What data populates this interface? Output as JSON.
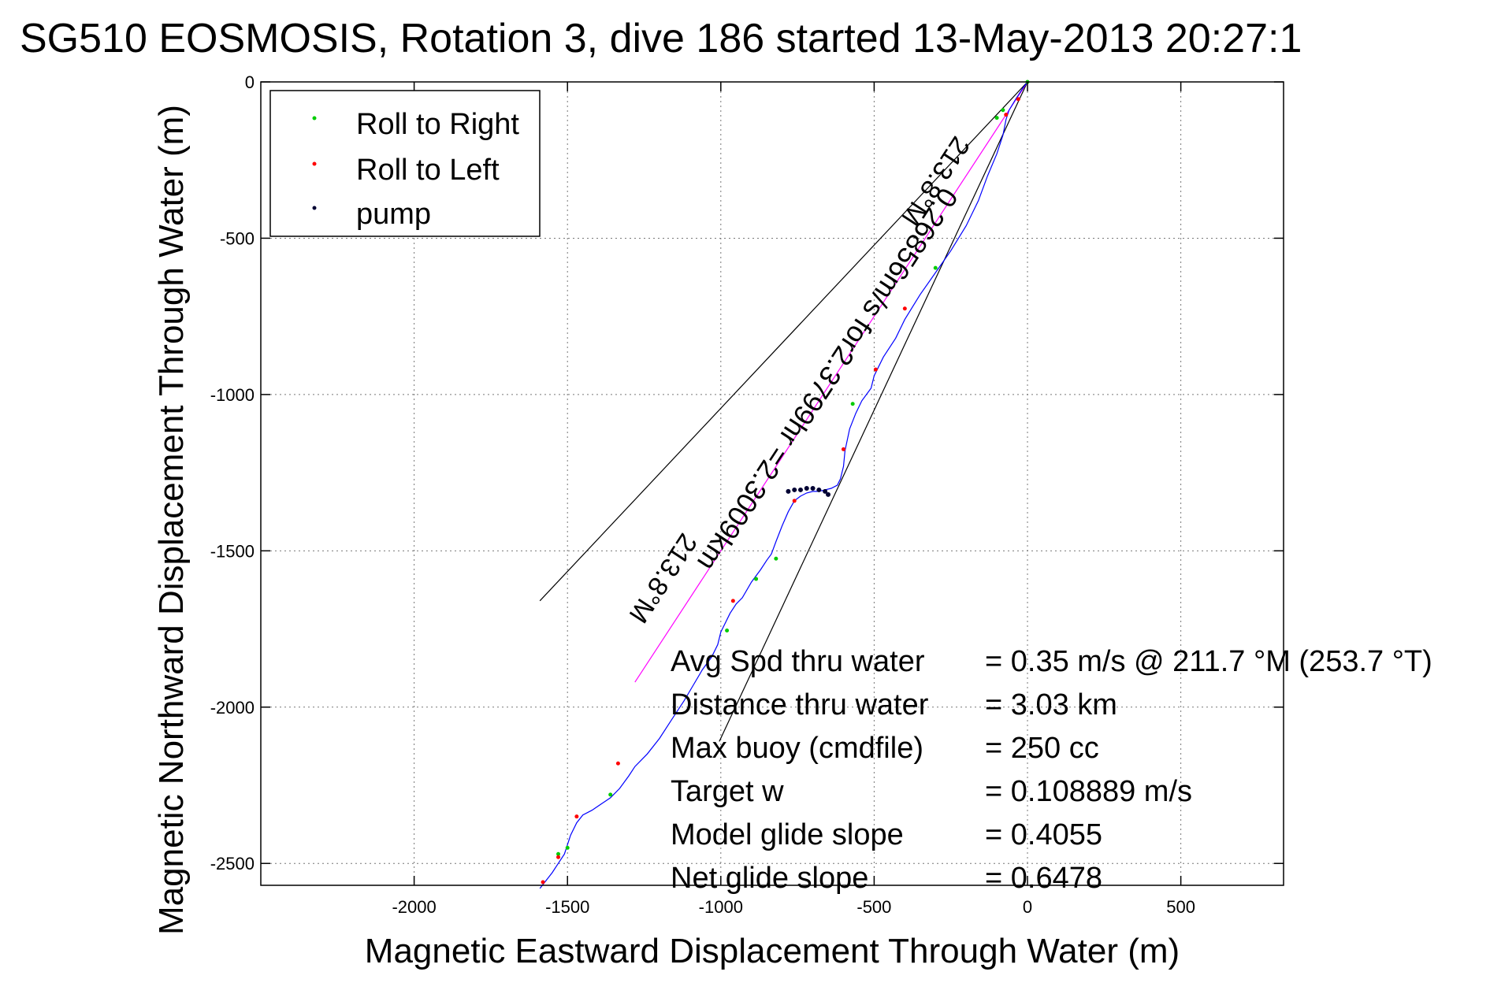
{
  "chart_data": {
    "type": "line",
    "title": "SG510 EOSMOSIS, Rotation 3, dive 186 started 13-May-2013 20:27:1",
    "xlabel": "Magnetic Eastward Displacement Through Water (m)",
    "ylabel": "Magnetic Northward Displacement Through Water (m)",
    "xlim": [
      -2500,
      835
    ],
    "ylim": [
      -2570,
      0
    ],
    "x_ticks": [
      -2000,
      -1500,
      -1000,
      -500,
      0,
      500
    ],
    "y_ticks": [
      0,
      -500,
      -1000,
      -1500,
      -2000,
      -2500
    ],
    "x_tick_labels": [
      "-2000",
      "-1500",
      "-1000",
      "-500",
      "0",
      "500"
    ],
    "y_tick_labels": [
      "0",
      "-500",
      "-1000",
      "-1500",
      "-2000",
      "-2500"
    ],
    "grid": true,
    "legend": {
      "placement": "top-left",
      "entries": [
        {
          "label": "Roll to Right",
          "color": "#00cc00"
        },
        {
          "label": "Roll to Left",
          "color": "#ff0000"
        },
        {
          "label": "pump",
          "color": "#000033"
        }
      ]
    },
    "track_color": "#0000ff",
    "track": {
      "x": [
        0,
        -15,
        -35,
        -60,
        -70,
        -80,
        -100,
        -130,
        -160,
        -200,
        -250,
        -300,
        -350,
        -400,
        -430,
        -470,
        -500,
        -510,
        -540,
        -560,
        -580,
        -595,
        -600,
        -610,
        -620,
        -640,
        -660,
        -680,
        -700,
        -720,
        -740,
        -760,
        -780,
        -800,
        -820,
        -835,
        -850,
        -870,
        -900,
        -930,
        -950,
        -970,
        -990,
        -1000,
        -1010,
        -1030,
        -1060,
        -1090,
        -1120,
        -1160,
        -1200,
        -1240,
        -1280,
        -1300,
        -1330,
        -1360,
        -1390,
        -1420,
        -1450,
        -1470,
        -1490,
        -1500,
        -1510,
        -1530,
        -1550,
        -1570,
        -1590
      ],
      "y": [
        0,
        -20,
        -50,
        -90,
        -120,
        -170,
        -230,
        -300,
        -380,
        -460,
        -540,
        -610,
        -680,
        -760,
        -820,
        -880,
        -940,
        -980,
        -1020,
        -1060,
        -1110,
        -1180,
        -1230,
        -1270,
        -1290,
        -1300,
        -1305,
        -1310,
        -1310,
        -1315,
        -1325,
        -1340,
        -1375,
        -1420,
        -1470,
        -1510,
        -1530,
        -1560,
        -1600,
        -1650,
        -1670,
        -1700,
        -1740,
        -1760,
        -1800,
        -1840,
        -1880,
        -1930,
        -1980,
        -2040,
        -2100,
        -2150,
        -2190,
        -2220,
        -2260,
        -2290,
        -2310,
        -2330,
        -2345,
        -2370,
        -2410,
        -2440,
        -2470,
        -2500,
        -2530,
        -2555,
        -2580
      ]
    },
    "roll_right_points": {
      "x": [
        0,
        -80,
        -100,
        -300,
        -570,
        -820,
        -885,
        -980,
        -1360,
        -1500,
        -1530
      ],
      "y": [
        0,
        -90,
        -115,
        -595,
        -1030,
        -1525,
        -1590,
        -1755,
        -2280,
        -2450,
        -2470
      ]
    },
    "roll_left_points": {
      "x": [
        -30,
        -70,
        -400,
        -495,
        -600,
        -760,
        -960,
        -1335,
        -1470,
        -1530,
        -1580
      ],
      "y": [
        -55,
        -105,
        -725,
        -920,
        -1175,
        -1340,
        -1660,
        -2180,
        -2350,
        -2480,
        -2560
      ]
    },
    "pump_points": {
      "x": [
        -780,
        -760,
        -740,
        -720,
        -700,
        -680,
        -660,
        -650
      ],
      "y": [
        -1310,
        -1305,
        -1305,
        -1300,
        -1300,
        -1305,
        -1310,
        -1320
      ]
    },
    "depth_average_line": {
      "color": "#ff00ff",
      "x": [
        0,
        -1280
      ],
      "y": [
        0,
        -1920
      ]
    },
    "envelope_lines": [
      {
        "color": "#000000",
        "x": [
          0,
          -1590
        ],
        "y": [
          0,
          -1660
        ]
      },
      {
        "color": "#000000",
        "x": [
          0,
          -1005
        ],
        "y": [
          0,
          -2110
        ]
      }
    ],
    "annotations": {
      "line_label_top": "213.8°M",
      "line_label_main": "0.26856m/s for2.3799hr =2.3009km",
      "line_label_bottom": "213.8°M"
    },
    "stats": [
      {
        "label": "Avg Spd thru water",
        "value": "=  0.35 m/s @ 211.7 °M (253.7 °T)"
      },
      {
        "label": "Distance thru water",
        "value": "=  3.03 km"
      },
      {
        "label": "Max buoy (cmdfile)",
        "value": "= 250 cc"
      },
      {
        "label": "Target w",
        "value": "= 0.108889 m/s"
      },
      {
        "label": "Model glide slope",
        "value": "= 0.4055"
      },
      {
        "label": "Net glide slope",
        "value": "= 0.6478"
      }
    ]
  }
}
